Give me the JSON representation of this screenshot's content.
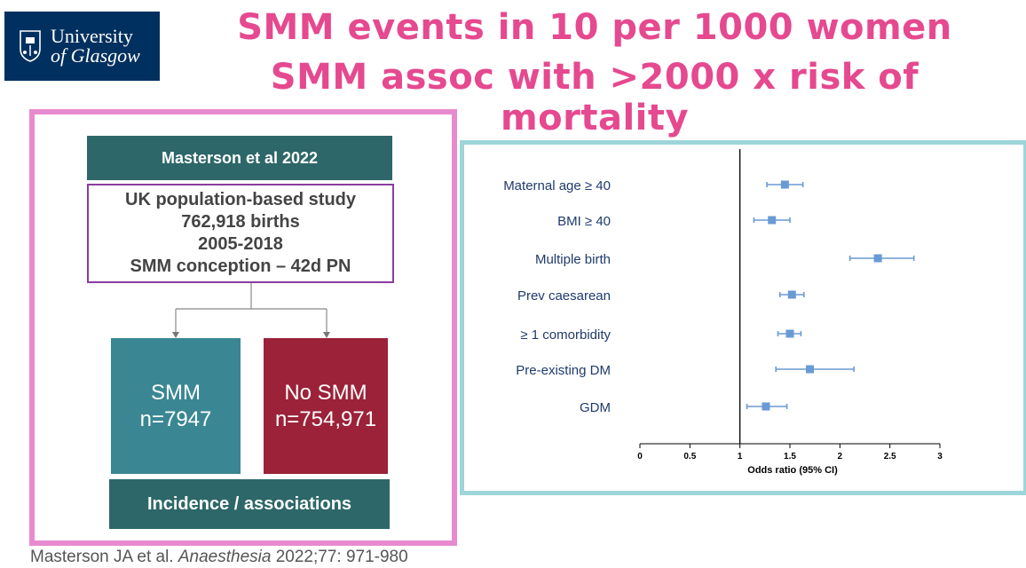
{
  "logo": {
    "line1": "University",
    "line2": "of Glasgow"
  },
  "title": {
    "line1": "SMM events in 10 per 1000 women",
    "line2": "SMM assoc with >2000 x risk of mortality"
  },
  "flowchart": {
    "header": "Masterson et al 2022",
    "study_lines": [
      "UK population-based study",
      "762,918 births",
      "2005-2018",
      "SMM conception – 42d PN"
    ],
    "smm": {
      "label": "SMM",
      "count": "n=7947"
    },
    "no_smm": {
      "label": "No SMM",
      "count": "n=754,971"
    },
    "footer": "Incidence / associations"
  },
  "chart_data": {
    "type": "scatter",
    "subtype": "forest-plot",
    "xlabel": "Odds ratio (95% CI)",
    "xlim": [
      0,
      3
    ],
    "xticks": [
      "0",
      "0.5",
      "1",
      "1.5",
      "2",
      "2.5",
      "3"
    ],
    "reference_line": 1,
    "grid": false,
    "rows": [
      {
        "label": "Maternal age ≥ 40",
        "or": 1.45,
        "lo": 1.27,
        "hi": 1.63
      },
      {
        "label": "BMI ≥ 40",
        "or": 1.32,
        "lo": 1.14,
        "hi": 1.5
      },
      {
        "label": "Multiple birth",
        "or": 2.38,
        "lo": 2.1,
        "hi": 2.74
      },
      {
        "label": "Prev caesarean",
        "or": 1.52,
        "lo": 1.4,
        "hi": 1.64
      },
      {
        "label": "≥ 1 comorbidity",
        "or": 1.5,
        "lo": 1.38,
        "hi": 1.61
      },
      {
        "label": "Pre-existing DM",
        "or": 1.7,
        "lo": 1.36,
        "hi": 2.14
      },
      {
        "label": "GDM",
        "or": 1.26,
        "lo": 1.07,
        "hi": 1.47
      }
    ],
    "colors": {
      "marker": "#6a9ad4",
      "label": "#1f3a6e",
      "axis": "#000000"
    }
  },
  "citation": {
    "authors": "Masterson JA et al.",
    "journal": "Anaesthesia",
    "ref": "2022;77: 971-980"
  }
}
